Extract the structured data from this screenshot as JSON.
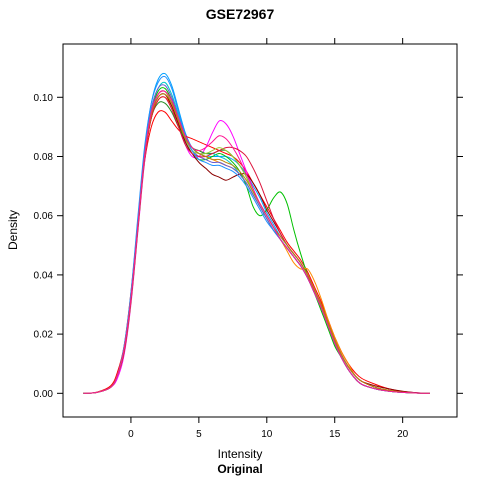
{
  "chart_data": {
    "type": "line",
    "title": "GSE72967",
    "xlabel": "Intensity",
    "ylabel": "Density",
    "sublabel": "Original",
    "xlim": [
      -5,
      24
    ],
    "ylim": [
      -0.008,
      0.118
    ],
    "x_ticks": [
      0,
      5,
      10,
      15,
      20
    ],
    "y_ticks": [
      0.0,
      0.02,
      0.04,
      0.06,
      0.08,
      0.1
    ],
    "y_tick_labels": [
      "0.00",
      "0.02",
      "0.04",
      "0.06",
      "0.08",
      "0.10"
    ],
    "grid": false,
    "legend": "none",
    "series_description": "Overlaid kernel density curves, one per sample",
    "x": [
      -3.5,
      -2.5,
      -1.5,
      -1.0,
      -0.5,
      0.0,
      0.5,
      1.0,
      1.5,
      2.0,
      2.5,
      3.0,
      3.5,
      4.0,
      4.5,
      5.0,
      5.5,
      6.0,
      6.5,
      7.0,
      7.5,
      8.0,
      8.5,
      9.0,
      9.5,
      10.0,
      10.5,
      11.0,
      11.5,
      12.0,
      12.5,
      13.0,
      13.5,
      14.0,
      14.5,
      15.0,
      15.5,
      16.0,
      16.5,
      17.0,
      18.0,
      19.0,
      20.0,
      21.0,
      22.0
    ],
    "series": [
      {
        "color": "#00a0ff",
        "values": [
          0.0,
          0.0003,
          0.002,
          0.006,
          0.015,
          0.033,
          0.058,
          0.082,
          0.098,
          0.106,
          0.108,
          0.104,
          0.096,
          0.088,
          0.083,
          0.081,
          0.08,
          0.08,
          0.08,
          0.08,
          0.079,
          0.077,
          0.074,
          0.07,
          0.066,
          0.061,
          0.057,
          0.053,
          0.05,
          0.047,
          0.044,
          0.04,
          0.035,
          0.03,
          0.024,
          0.018,
          0.013,
          0.009,
          0.006,
          0.004,
          0.002,
          0.001,
          0.0005,
          0.0002,
          0.0
        ]
      },
      {
        "color": "#ff0000",
        "values": [
          0.0,
          0.0004,
          0.0025,
          0.007,
          0.016,
          0.034,
          0.057,
          0.078,
          0.09,
          0.095,
          0.095,
          0.092,
          0.089,
          0.087,
          0.086,
          0.085,
          0.084,
          0.083,
          0.082,
          0.081,
          0.08,
          0.078,
          0.075,
          0.071,
          0.067,
          0.063,
          0.059,
          0.055,
          0.051,
          0.048,
          0.045,
          0.041,
          0.036,
          0.031,
          0.025,
          0.019,
          0.014,
          0.01,
          0.007,
          0.005,
          0.003,
          0.0015,
          0.0006,
          0.0002,
          0.0
        ]
      },
      {
        "color": "#00c000",
        "values": [
          0.0,
          0.0003,
          0.002,
          0.006,
          0.015,
          0.032,
          0.056,
          0.08,
          0.095,
          0.102,
          0.103,
          0.099,
          0.092,
          0.085,
          0.081,
          0.079,
          0.079,
          0.08,
          0.081,
          0.08,
          0.078,
          0.075,
          0.07,
          0.063,
          0.06,
          0.062,
          0.066,
          0.068,
          0.064,
          0.055,
          0.047,
          0.04,
          0.034,
          0.028,
          0.022,
          0.016,
          0.012,
          0.008,
          0.005,
          0.003,
          0.0015,
          0.0007,
          0.0003,
          0.0001,
          0.0
        ]
      },
      {
        "color": "#ff00ff",
        "values": [
          0.0,
          0.0003,
          0.002,
          0.005,
          0.013,
          0.03,
          0.054,
          0.078,
          0.094,
          0.101,
          0.102,
          0.098,
          0.091,
          0.084,
          0.08,
          0.08,
          0.083,
          0.088,
          0.092,
          0.091,
          0.087,
          0.081,
          0.075,
          0.069,
          0.064,
          0.06,
          0.056,
          0.052,
          0.049,
          0.046,
          0.043,
          0.039,
          0.034,
          0.029,
          0.023,
          0.017,
          0.012,
          0.008,
          0.005,
          0.003,
          0.0015,
          0.0007,
          0.0003,
          0.0001,
          0.0
        ]
      },
      {
        "color": "#ff8c00",
        "values": [
          0.0,
          0.0003,
          0.002,
          0.006,
          0.014,
          0.031,
          0.055,
          0.079,
          0.093,
          0.099,
          0.1,
          0.097,
          0.091,
          0.086,
          0.083,
          0.081,
          0.08,
          0.079,
          0.078,
          0.077,
          0.076,
          0.074,
          0.071,
          0.067,
          0.063,
          0.059,
          0.055,
          0.052,
          0.048,
          0.044,
          0.042,
          0.042,
          0.038,
          0.032,
          0.025,
          0.019,
          0.014,
          0.01,
          0.006,
          0.004,
          0.002,
          0.001,
          0.0004,
          0.0001,
          0.0
        ]
      },
      {
        "color": "#00c8c8",
        "values": [
          0.0,
          0.0003,
          0.002,
          0.006,
          0.015,
          0.033,
          0.057,
          0.081,
          0.096,
          0.103,
          0.105,
          0.101,
          0.094,
          0.087,
          0.083,
          0.081,
          0.081,
          0.081,
          0.08,
          0.079,
          0.077,
          0.074,
          0.071,
          0.067,
          0.063,
          0.059,
          0.055,
          0.052,
          0.049,
          0.046,
          0.043,
          0.039,
          0.034,
          0.029,
          0.023,
          0.017,
          0.012,
          0.008,
          0.005,
          0.003,
          0.0015,
          0.0007,
          0.0003,
          0.0001,
          0.0
        ]
      },
      {
        "color": "#8b0000",
        "values": [
          0.0,
          0.0003,
          0.002,
          0.006,
          0.015,
          0.032,
          0.056,
          0.08,
          0.094,
          0.1,
          0.101,
          0.097,
          0.091,
          0.085,
          0.081,
          0.078,
          0.076,
          0.074,
          0.073,
          0.072,
          0.073,
          0.074,
          0.074,
          0.071,
          0.067,
          0.062,
          0.058,
          0.054,
          0.05,
          0.047,
          0.044,
          0.04,
          0.035,
          0.03,
          0.024,
          0.018,
          0.013,
          0.009,
          0.006,
          0.004,
          0.0025,
          0.0015,
          0.0007,
          0.0002,
          0.0
        ]
      },
      {
        "color": "#228b22",
        "values": [
          0.0,
          0.0003,
          0.002,
          0.006,
          0.014,
          0.031,
          0.055,
          0.079,
          0.093,
          0.098,
          0.098,
          0.095,
          0.09,
          0.086,
          0.083,
          0.082,
          0.081,
          0.081,
          0.082,
          0.082,
          0.08,
          0.077,
          0.073,
          0.068,
          0.064,
          0.06,
          0.056,
          0.052,
          0.049,
          0.046,
          0.043,
          0.039,
          0.034,
          0.029,
          0.023,
          0.017,
          0.012,
          0.008,
          0.005,
          0.003,
          0.0015,
          0.0007,
          0.0003,
          0.0001,
          0.0
        ]
      },
      {
        "color": "#6a5acd",
        "values": [
          0.0,
          0.0003,
          0.002,
          0.006,
          0.015,
          0.033,
          0.057,
          0.081,
          0.096,
          0.103,
          0.104,
          0.1,
          0.093,
          0.086,
          0.082,
          0.08,
          0.079,
          0.078,
          0.078,
          0.077,
          0.076,
          0.074,
          0.071,
          0.067,
          0.063,
          0.059,
          0.055,
          0.052,
          0.049,
          0.046,
          0.043,
          0.039,
          0.034,
          0.029,
          0.023,
          0.017,
          0.012,
          0.008,
          0.005,
          0.003,
          0.0015,
          0.0007,
          0.0003,
          0.0001,
          0.0
        ]
      },
      {
        "color": "#dc143c",
        "values": [
          0.0,
          0.0003,
          0.002,
          0.006,
          0.014,
          0.031,
          0.055,
          0.079,
          0.093,
          0.099,
          0.1,
          0.096,
          0.09,
          0.084,
          0.081,
          0.08,
          0.08,
          0.081,
          0.082,
          0.083,
          0.083,
          0.082,
          0.08,
          0.076,
          0.071,
          0.065,
          0.059,
          0.054,
          0.05,
          0.047,
          0.044,
          0.04,
          0.035,
          0.03,
          0.024,
          0.018,
          0.013,
          0.009,
          0.006,
          0.004,
          0.002,
          0.001,
          0.0004,
          0.0001,
          0.0
        ]
      },
      {
        "color": "#9acd32",
        "values": [
          0.0,
          0.0003,
          0.002,
          0.006,
          0.015,
          0.032,
          0.056,
          0.08,
          0.095,
          0.101,
          0.102,
          0.098,
          0.092,
          0.086,
          0.082,
          0.081,
          0.081,
          0.082,
          0.083,
          0.082,
          0.08,
          0.077,
          0.073,
          0.068,
          0.064,
          0.06,
          0.056,
          0.052,
          0.049,
          0.046,
          0.043,
          0.039,
          0.034,
          0.029,
          0.023,
          0.017,
          0.012,
          0.008,
          0.005,
          0.003,
          0.0015,
          0.0007,
          0.0003,
          0.0001,
          0.0
        ]
      },
      {
        "color": "#1e90ff",
        "values": [
          0.0,
          0.0003,
          0.002,
          0.006,
          0.016,
          0.034,
          0.059,
          0.083,
          0.098,
          0.105,
          0.107,
          0.103,
          0.095,
          0.087,
          0.082,
          0.079,
          0.078,
          0.077,
          0.077,
          0.076,
          0.075,
          0.073,
          0.07,
          0.066,
          0.062,
          0.058,
          0.055,
          0.052,
          0.049,
          0.046,
          0.043,
          0.039,
          0.034,
          0.029,
          0.023,
          0.017,
          0.012,
          0.008,
          0.005,
          0.003,
          0.0015,
          0.0007,
          0.0003,
          0.0001,
          0.0
        ]
      },
      {
        "color": "#b8860b",
        "values": [
          0.0,
          0.0003,
          0.002,
          0.006,
          0.015,
          0.032,
          0.056,
          0.08,
          0.094,
          0.1,
          0.101,
          0.098,
          0.092,
          0.086,
          0.083,
          0.081,
          0.08,
          0.079,
          0.079,
          0.078,
          0.077,
          0.075,
          0.072,
          0.068,
          0.064,
          0.06,
          0.056,
          0.053,
          0.05,
          0.047,
          0.044,
          0.04,
          0.035,
          0.03,
          0.024,
          0.018,
          0.013,
          0.009,
          0.006,
          0.004,
          0.002,
          0.001,
          0.0004,
          0.0001,
          0.0
        ]
      },
      {
        "color": "#ff1493",
        "values": [
          0.0,
          0.0003,
          0.002,
          0.006,
          0.015,
          0.032,
          0.056,
          0.08,
          0.095,
          0.101,
          0.102,
          0.099,
          0.093,
          0.087,
          0.083,
          0.082,
          0.083,
          0.085,
          0.087,
          0.086,
          0.083,
          0.079,
          0.074,
          0.069,
          0.064,
          0.06,
          0.056,
          0.052,
          0.049,
          0.046,
          0.043,
          0.039,
          0.034,
          0.029,
          0.023,
          0.017,
          0.012,
          0.008,
          0.005,
          0.003,
          0.0015,
          0.0007,
          0.0003,
          0.0001,
          0.0
        ]
      }
    ]
  }
}
